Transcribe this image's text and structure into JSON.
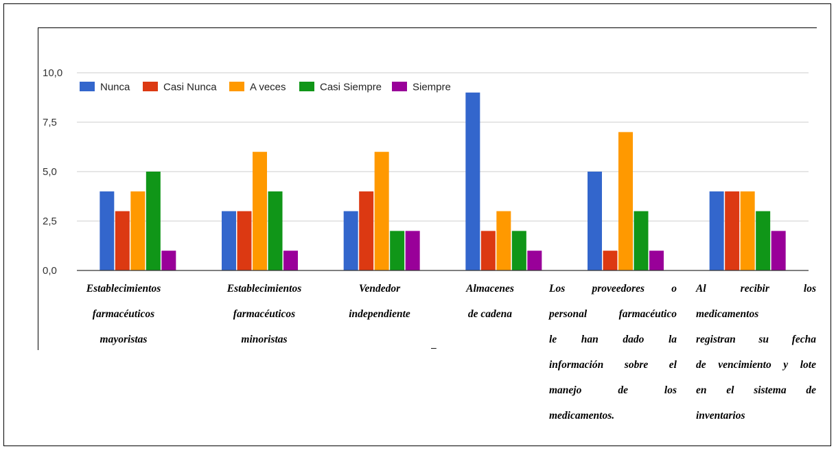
{
  "chart_data": {
    "type": "bar",
    "categories": [
      "Establecimientos farmacéuticos mayoristas",
      "Establecimientos farmacéuticos minoristas",
      "Vendedor independiente",
      "Almacenes de cadena",
      "Los proveedores o personal farmacéutico le han dado la información sobre el manejo de los medicamentos.",
      "Al recibir los medicamentos registran su fecha de vencimiento y lote en el sistema de inventarios"
    ],
    "category_lines": [
      [
        "Establecimientos",
        "farmacéuticos",
        "mayoristas"
      ],
      [
        "Establecimientos",
        "farmacéuticos",
        "minoristas"
      ],
      [
        "Vendedor",
        "independiente"
      ],
      [
        "Almacenes",
        "de cadena"
      ],
      [
        "Los proveedores o",
        "personal farmacéutico",
        "le han dado la",
        "información sobre el",
        "manejo de los",
        "medicamentos."
      ],
      [
        "Al recibir los",
        "medicamentos",
        "registran su fecha",
        "de vencimiento y lote",
        "en el sistema de",
        "inventarios"
      ]
    ],
    "series": [
      {
        "name": "Nunca",
        "color": "#3366cc",
        "values": [
          4,
          3,
          3,
          9,
          5,
          4
        ]
      },
      {
        "name": "Casi Nunca",
        "color": "#dc3912",
        "values": [
          3,
          3,
          4,
          2,
          1,
          4
        ]
      },
      {
        "name": "A veces",
        "color": "#ff9900",
        "values": [
          4,
          6,
          6,
          3,
          7,
          4
        ]
      },
      {
        "name": "Casi Siempre",
        "color": "#109618",
        "values": [
          5,
          4,
          2,
          2,
          3,
          3
        ]
      },
      {
        "name": "Siempre",
        "color": "#990099",
        "values": [
          1,
          1,
          2,
          1,
          1,
          2
        ]
      }
    ],
    "yticks": [
      "0,0",
      "2,5",
      "5,0",
      "7,5",
      "10,0"
    ],
    "ylim": [
      0,
      10
    ],
    "grid": true,
    "legend": "top-left"
  },
  "stray_mark": "–"
}
